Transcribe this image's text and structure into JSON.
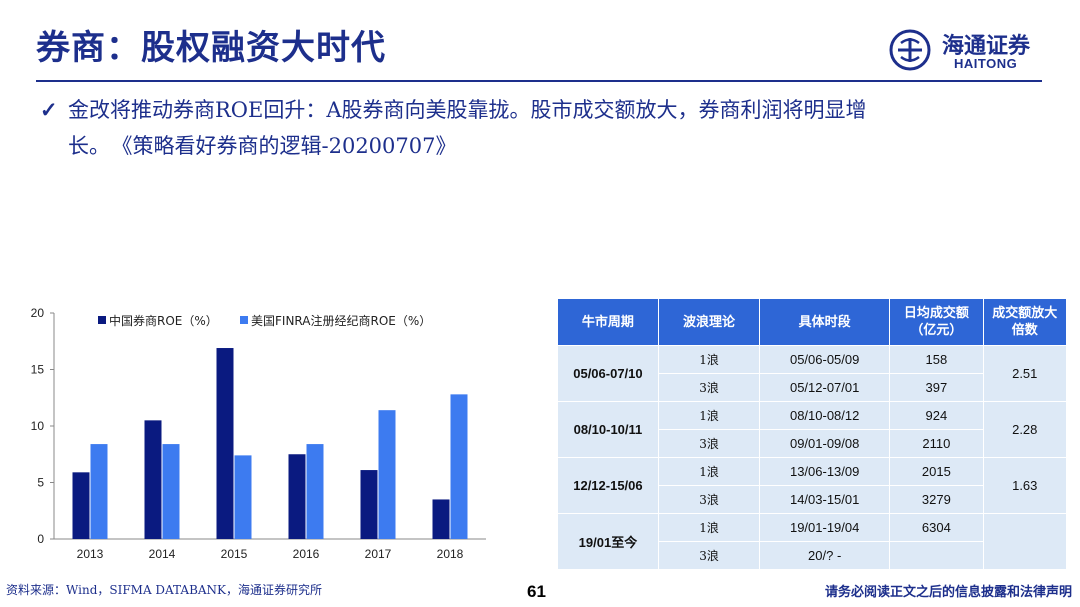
{
  "header": {
    "title": "券商：股权融资大时代",
    "logo_cn": "海通证券",
    "logo_en": "HAITONG"
  },
  "bullet": {
    "check": "✓",
    "text_line1": "金改将推动券商ROE回升：A股券商向美股靠拢。股市成交额放大，券商利润将明显增",
    "text_line2": "长。",
    "citation": "《策略看好券商的逻辑-20200707》"
  },
  "chart_data": {
    "type": "bar",
    "categories": [
      "2013",
      "2014",
      "2015",
      "2016",
      "2017",
      "2018"
    ],
    "series": [
      {
        "name": "中国券商ROE（%）",
        "values": [
          5.9,
          10.5,
          16.9,
          7.5,
          6.1,
          3.5
        ],
        "color": "#0a1a80"
      },
      {
        "name": "美国FINRA注册经纪商ROE（%）",
        "values": [
          8.4,
          8.4,
          7.4,
          8.4,
          11.4,
          12.8
        ],
        "color": "#3d7bf0"
      }
    ],
    "ylim": [
      0,
      20
    ],
    "yticks": [
      "0",
      "5",
      "10",
      "15",
      "20"
    ],
    "grid": false,
    "legend": "top"
  },
  "table": {
    "headers": [
      "牛市周期",
      "波浪理论",
      "具体时段",
      "日均成交额（亿元）",
      "成交额放大倍数"
    ],
    "groups": [
      {
        "period": "05/06-07/10",
        "multiple": "2.51",
        "rows": [
          {
            "wave": "1浪",
            "span": "05/06-05/09",
            "amount": "158"
          },
          {
            "wave": "3浪",
            "span": "05/12-07/01",
            "amount": "397"
          }
        ]
      },
      {
        "period": "08/10-10/11",
        "multiple": "2.28",
        "rows": [
          {
            "wave": "1浪",
            "span": "08/10-08/12",
            "amount": "924"
          },
          {
            "wave": "3浪",
            "span": "09/01-09/08",
            "amount": "2110"
          }
        ]
      },
      {
        "period": "12/12-15/06",
        "multiple": "1.63",
        "rows": [
          {
            "wave": "1浪",
            "span": "13/06-13/09",
            "amount": "2015"
          },
          {
            "wave": "3浪",
            "span": "14/03-15/01",
            "amount": "3279"
          }
        ]
      },
      {
        "period": "19/01至今",
        "multiple": "",
        "rows": [
          {
            "wave": "1浪",
            "span": "19/01-19/04",
            "amount": "6304"
          },
          {
            "wave": "3浪",
            "span": "20/? -",
            "amount": ""
          }
        ]
      }
    ]
  },
  "footer": {
    "source": "资料来源：Wind，SIFMA DATABANK，海通证券研究所",
    "page": "61",
    "disclaimer": "请务必阅读正文之后的信息披露和法律声明"
  },
  "colors": {
    "brand": "#1d2f8c",
    "table_header": "#2e66d6",
    "table_cell": "#dde9f6"
  }
}
